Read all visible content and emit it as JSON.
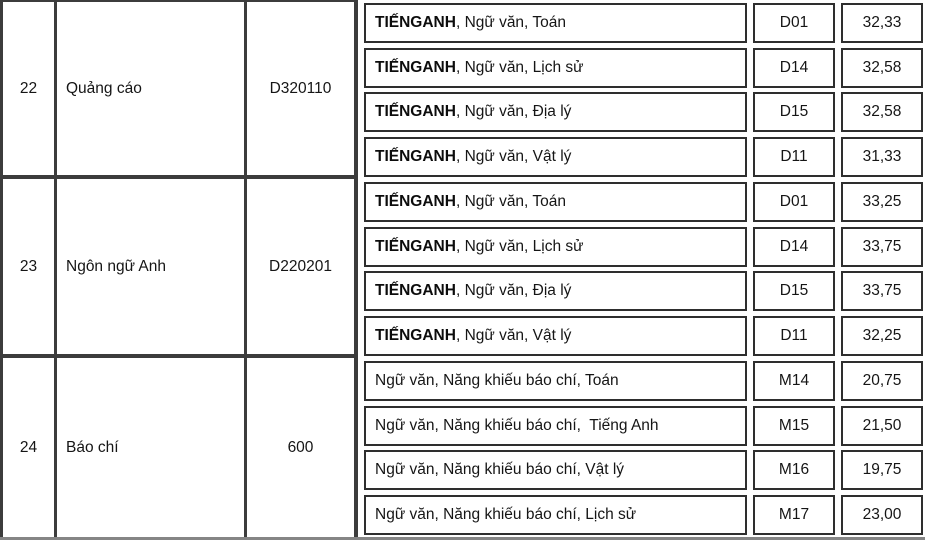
{
  "table": {
    "description": "Bảng điểm chuẩn - các ngành và tổ hợp xét tuyển",
    "colors": {
      "grid_line": "#3c3c3c",
      "box_border": "#2e2e2e",
      "bottom_edge_line": "#858585",
      "text": "#151515",
      "background": "#ffffff"
    },
    "groups": [
      {
        "stt": "22",
        "name": "Quảng cáo",
        "code": "D320110",
        "rows": [
          {
            "combo_bold": "TIẾNGANH",
            "combo_rest": ", Ngữ văn, Toán",
            "block": "D01",
            "score": "32,33"
          },
          {
            "combo_bold": "TIẾNGANH",
            "combo_rest": ", Ngữ văn, Lịch sử",
            "block": "D14",
            "score": "32,58"
          },
          {
            "combo_bold": "TIẾNGANH",
            "combo_rest": ", Ngữ văn, Địa lý",
            "block": "D15",
            "score": "32,58"
          },
          {
            "combo_bold": "TIẾNGANH",
            "combo_rest": ", Ngữ văn, Vật lý",
            "block": "D11",
            "score": "31,33"
          }
        ]
      },
      {
        "stt": "23",
        "name": "Ngôn ngữ Anh",
        "code": "D220201",
        "rows": [
          {
            "combo_bold": "TIẾNGANH",
            "combo_rest": ", Ngữ văn, Toán",
            "block": "D01",
            "score": "33,25"
          },
          {
            "combo_bold": "TIẾNGANH",
            "combo_rest": ", Ngữ văn, Lịch sử",
            "block": "D14",
            "score": "33,75"
          },
          {
            "combo_bold": "TIẾNGANH",
            "combo_rest": ", Ngữ văn, Địa lý",
            "block": "D15",
            "score": "33,75"
          },
          {
            "combo_bold": "TIẾNGANH",
            "combo_rest": ", Ngữ văn, Vật lý",
            "block": "D11",
            "score": "32,25"
          }
        ]
      },
      {
        "stt": "24",
        "name": "Báo chí",
        "code": "600",
        "rows": [
          {
            "combo_bold": "",
            "combo_rest": "Ngữ văn, Năng khiếu báo chí, Toán",
            "block": "M14",
            "score": "20,75"
          },
          {
            "combo_bold": "",
            "combo_rest": "Ngữ văn, Năng khiếu báo chí,  Tiếng Anh",
            "block": "M15",
            "score": "21,50"
          },
          {
            "combo_bold": "",
            "combo_rest": "Ngữ văn, Năng khiếu báo chí, Vật lý",
            "block": "M16",
            "score": "19,75"
          },
          {
            "combo_bold": "",
            "combo_rest": "Ngữ văn, Năng khiếu báo chí, Lịch sử",
            "block": "M17",
            "score": "23,00"
          }
        ]
      }
    ]
  }
}
